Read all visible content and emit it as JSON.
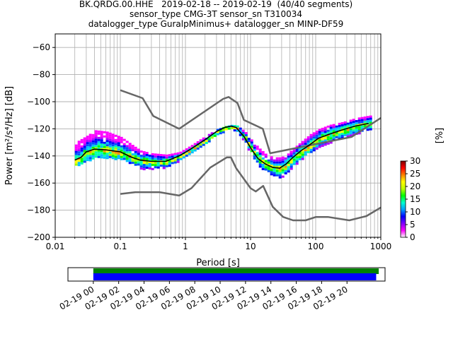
{
  "title_lines": [
    "BK.QRDG.00.HHE   2019-02-18 -- 2019-02-19  (40/40 segments)",
    "sensor_type CMG-3T sensor_sn T310034",
    "datalogger_type GuralpMinimus+ datalogger_sn MINP-DF59"
  ],
  "chart_data": [
    {
      "type": "heatmap",
      "subtype": "probabilistic-power-spectral-density",
      "xlabel": "Period [s]",
      "ylabel": "Power [m²/s⁴/Hz] [dB]",
      "xscale": "log",
      "xlim": [
        0.01,
        1000
      ],
      "ylim": [
        -200,
        -50
      ],
      "x_tick_labels": [
        "0.01",
        "0.1",
        "1",
        "10",
        "100",
        "1000"
      ],
      "x_ticks": [
        0.01,
        0.1,
        1,
        10,
        100,
        1000
      ],
      "y_ticks": [
        -200,
        -180,
        -160,
        -140,
        -120,
        -100,
        -80,
        -60
      ],
      "grid": true,
      "colorbar": {
        "label": "[%]",
        "ticks": [
          0,
          5,
          10,
          15,
          20,
          25,
          30
        ],
        "range": [
          0,
          30
        ],
        "colors": [
          "#ffffff",
          "#ff00ff",
          "#8000ff",
          "#0000ff",
          "#00a0ff",
          "#00ffd0",
          "#00ff00",
          "#c0ff00",
          "#ffff00",
          "#ff8000",
          "#ff0000",
          "#800000"
        ]
      },
      "noise_model_high": {
        "name": "NHNM",
        "color": "#666666",
        "points": [
          [
            0.1,
            -91.5
          ],
          [
            0.22,
            -97.4
          ],
          [
            0.32,
            -110.5
          ],
          [
            0.8,
            -120
          ],
          [
            3.8,
            -97.9
          ],
          [
            4.6,
            -96.5
          ],
          [
            6.3,
            -101
          ],
          [
            7.9,
            -113.5
          ],
          [
            15.4,
            -120
          ],
          [
            20,
            -138
          ],
          [
            354.8,
            -126
          ],
          [
            1000,
            -112
          ]
        ]
      },
      "noise_model_low": {
        "name": "NLNM",
        "color": "#666666",
        "points": [
          [
            0.1,
            -168
          ],
          [
            0.17,
            -166.7
          ],
          [
            0.4,
            -166.7
          ],
          [
            0.8,
            -169.2
          ],
          [
            1.24,
            -163.7
          ],
          [
            2.4,
            -148.6
          ],
          [
            4.3,
            -141.1
          ],
          [
            5,
            -141.1
          ],
          [
            6,
            -149
          ],
          [
            10,
            -163.8
          ],
          [
            12,
            -166.2
          ],
          [
            15.6,
            -162.1
          ],
          [
            21.9,
            -177.5
          ],
          [
            31.6,
            -185
          ],
          [
            45,
            -187.5
          ],
          [
            70,
            -187.5
          ],
          [
            101,
            -185
          ],
          [
            154,
            -185
          ],
          [
            328,
            -187.5
          ],
          [
            600,
            -184.4
          ],
          [
            1000,
            -178
          ]
        ]
      },
      "mode_curve": {
        "color": "#000000",
        "points": [
          [
            0.02,
            -143
          ],
          [
            0.025,
            -141
          ],
          [
            0.03,
            -137
          ],
          [
            0.04,
            -135
          ],
          [
            0.06,
            -135.5
          ],
          [
            0.1,
            -137
          ],
          [
            0.15,
            -141
          ],
          [
            0.2,
            -143
          ],
          [
            0.3,
            -144
          ],
          [
            0.5,
            -144
          ],
          [
            0.8,
            -140
          ],
          [
            1.2,
            -135
          ],
          [
            2,
            -128
          ],
          [
            3,
            -122
          ],
          [
            4,
            -119
          ],
          [
            5,
            -118
          ],
          [
            6,
            -119
          ],
          [
            8,
            -126
          ],
          [
            10,
            -134
          ],
          [
            13,
            -142
          ],
          [
            17,
            -146
          ],
          [
            22,
            -148.5
          ],
          [
            28,
            -149
          ],
          [
            35,
            -146
          ],
          [
            45,
            -141
          ],
          [
            60,
            -136
          ],
          [
            80,
            -132
          ],
          [
            110,
            -127
          ],
          [
            160,
            -124
          ],
          [
            250,
            -121
          ],
          [
            400,
            -118
          ],
          [
            650,
            -116
          ]
        ]
      },
      "psd_band": {
        "upper": [
          [
            0.02,
            -130
          ],
          [
            0.03,
            -125
          ],
          [
            0.04,
            -121
          ],
          [
            0.06,
            -122
          ],
          [
            0.1,
            -126
          ],
          [
            0.15,
            -132
          ],
          [
            0.2,
            -136
          ],
          [
            0.3,
            -138
          ],
          [
            0.5,
            -139
          ],
          [
            0.8,
            -137
          ],
          [
            1.2,
            -132
          ],
          [
            2,
            -125
          ],
          [
            3,
            -120
          ],
          [
            4,
            -118
          ],
          [
            5,
            -117
          ],
          [
            6,
            -117.5
          ],
          [
            8,
            -122
          ],
          [
            10,
            -128
          ],
          [
            13,
            -134
          ],
          [
            17,
            -139
          ],
          [
            22,
            -141
          ],
          [
            28,
            -141
          ],
          [
            35,
            -139
          ],
          [
            45,
            -134
          ],
          [
            60,
            -129
          ],
          [
            80,
            -124
          ],
          [
            110,
            -120
          ],
          [
            160,
            -117
          ],
          [
            250,
            -115
          ],
          [
            400,
            -112
          ],
          [
            700,
            -110
          ]
        ],
        "lower": [
          [
            0.02,
            -147
          ],
          [
            0.03,
            -144
          ],
          [
            0.04,
            -141
          ],
          [
            0.06,
            -141
          ],
          [
            0.1,
            -142
          ],
          [
            0.15,
            -146
          ],
          [
            0.2,
            -149
          ],
          [
            0.3,
            -149
          ],
          [
            0.5,
            -148
          ],
          [
            0.8,
            -143
          ],
          [
            1.2,
            -138
          ],
          [
            2,
            -130
          ],
          [
            3,
            -124
          ],
          [
            4,
            -121
          ],
          [
            5,
            -120
          ],
          [
            6,
            -121
          ],
          [
            8,
            -130
          ],
          [
            10,
            -139
          ],
          [
            13,
            -147
          ],
          [
            17,
            -151
          ],
          [
            22,
            -154
          ],
          [
            28,
            -156
          ],
          [
            35,
            -152
          ],
          [
            45,
            -148
          ],
          [
            60,
            -142
          ],
          [
            80,
            -138
          ],
          [
            110,
            -133
          ],
          [
            160,
            -130
          ],
          [
            250,
            -127
          ],
          [
            400,
            -124
          ],
          [
            700,
            -120
          ]
        ]
      }
    },
    {
      "type": "timeline",
      "x_tick_labels": [
        "02-19 00",
        "02-19 02",
        "02-19 04",
        "02-19 06",
        "02-19 08",
        "02-19 10",
        "02-19 12",
        "02-19 14",
        "02-19 16",
        "02-19 18",
        "02-19 20"
      ],
      "range_hours": [
        -2,
        23
      ],
      "bars": [
        {
          "color": "#008000",
          "start_hour": 0,
          "end_hour": 22.5
        },
        {
          "color": "#0000ff",
          "start_hour": 0,
          "end_hour": 22.3
        }
      ]
    }
  ]
}
